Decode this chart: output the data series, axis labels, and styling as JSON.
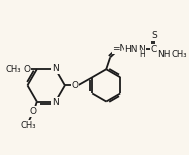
{
  "background_color": "#faf6ee",
  "line_color": "#1a1a1a",
  "line_width": 1.3,
  "font_size": 6.5,
  "figsize": [
    1.89,
    1.55
  ],
  "dpi": 100,
  "xlim": [
    0,
    9.5
  ],
  "ylim": [
    0,
    7.8
  ]
}
